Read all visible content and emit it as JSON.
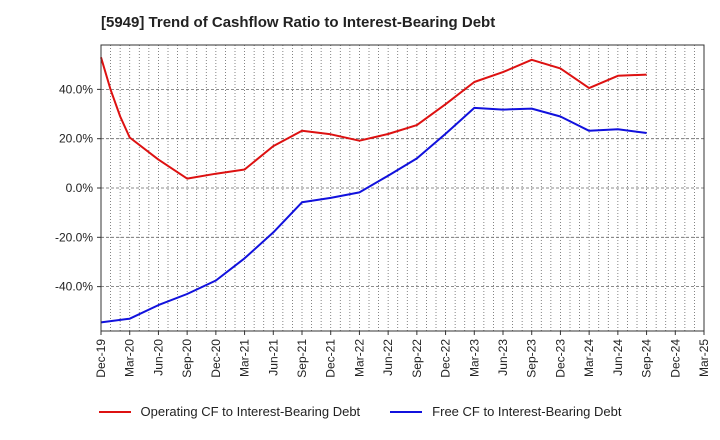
{
  "title": "[5949]  Trend of Cashflow Ratio to Interest-Bearing Debt",
  "chart_data": {
    "type": "line",
    "categories": [
      "Dec-19",
      "Mar-20",
      "Jun-20",
      "Sep-20",
      "Dec-20",
      "Mar-21",
      "Jun-21",
      "Sep-21",
      "Dec-21",
      "Mar-22",
      "Jun-22",
      "Sep-22",
      "Dec-22",
      "Mar-23",
      "Jun-23",
      "Sep-23",
      "Dec-23",
      "Mar-24",
      "Jun-24",
      "Sep-24",
      "Dec-24",
      "Mar-25"
    ],
    "ylim": [
      -58,
      58
    ],
    "yticks": [
      -40,
      -20,
      0,
      20,
      40
    ],
    "ytick_labels": [
      "-40.0%",
      "-20.0%",
      "0.0%",
      "20.0%",
      "40.0%"
    ],
    "grid": true,
    "legend_position": "bottom",
    "series": [
      {
        "name": "Operating CF to Interest-Bearing Debt",
        "color": "#dd1111",
        "x": [
          0,
          0.33,
          0.67,
          1,
          2,
          3,
          4,
          5,
          6,
          7,
          8,
          9,
          10,
          11,
          12,
          13,
          14,
          15,
          16,
          17,
          18,
          19
        ],
        "values": [
          53,
          40,
          29,
          20.5,
          11.5,
          3.8,
          5.8,
          7.5,
          17,
          23.2,
          21.8,
          19.2,
          21.9,
          25.5,
          34,
          43,
          47,
          52,
          48.5,
          40.5,
          45.5,
          46
        ]
      },
      {
        "name": "Free CF to Interest-Bearing Debt",
        "color": "#1111dd",
        "x": [
          0,
          1,
          2,
          3,
          4,
          5,
          6,
          7,
          8,
          9,
          10,
          11,
          12,
          13,
          14,
          15,
          16,
          17,
          18,
          19
        ],
        "values": [
          -54.5,
          -53,
          -47.5,
          -43,
          -37.5,
          -28.5,
          -18,
          -5.8,
          -4,
          -1.8,
          5,
          12,
          22,
          32.5,
          31.8,
          32.2,
          29,
          23.2,
          23.8,
          22.3
        ]
      }
    ]
  }
}
